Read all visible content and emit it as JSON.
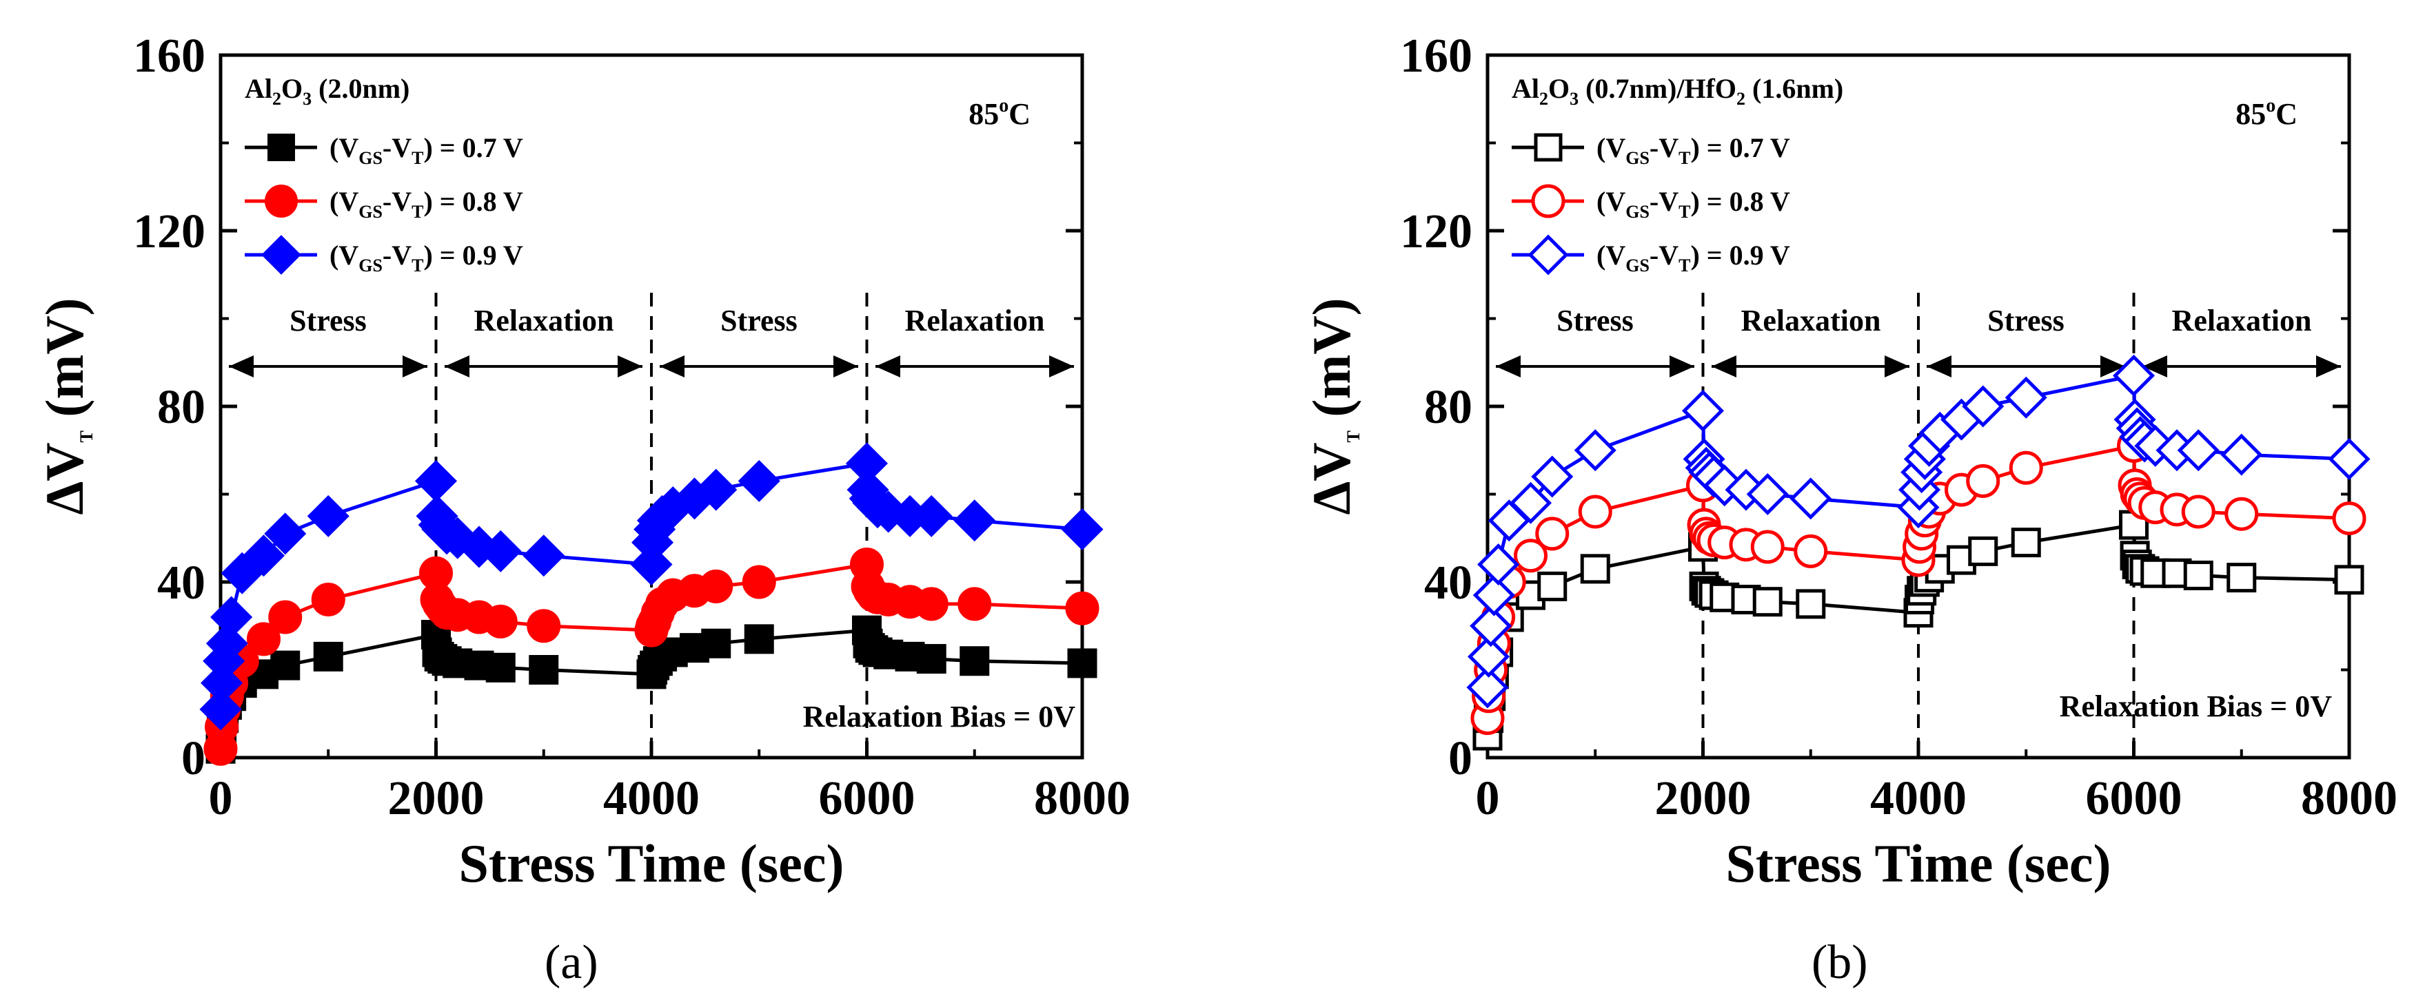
{
  "panels": [
    {
      "caption": "(a)",
      "device": {
        "main": "Al",
        "s1": "2",
        "mid": "O",
        "s2": "3",
        "rest": " (2.0nm)"
      },
      "temperature": {
        "value": "85",
        "sup": "o",
        "unit": "C"
      },
      "bias_note": "Relaxation Bias = 0V",
      "phases": [
        "Stress",
        "Relaxation",
        "Stress",
        "Relaxation"
      ],
      "legend": [
        {
          "pre": "(V",
          "s1": "GS",
          "mid": "-V",
          "s2": "T",
          "post": ") = 0.7 V"
        },
        {
          "pre": "(V",
          "s1": "GS",
          "mid": "-V",
          "s2": "T",
          "post": ") = 0.8 V"
        },
        {
          "pre": "(V",
          "s1": "GS",
          "mid": "-V",
          "s2": "T",
          "post": ") = 0.9 V"
        }
      ]
    },
    {
      "caption": "(b)",
      "device": {
        "main": "Al",
        "s1": "2",
        "mid": "O",
        "s2": "3",
        "rest": " (0.7nm)/HfO",
        "s3": "2",
        "rest2": " (1.6nm)"
      },
      "temperature": {
        "value": "85",
        "sup": "o",
        "unit": "C"
      },
      "bias_note": "Relaxation Bias = 0V",
      "phases": [
        "Stress",
        "Relaxation",
        "Stress",
        "Relaxation"
      ],
      "legend": [
        {
          "pre": "(V",
          "s1": "GS",
          "mid": "-V",
          "s2": "T",
          "post": ") = 0.7 V"
        },
        {
          "pre": "(V",
          "s1": "GS",
          "mid": "-V",
          "s2": "T",
          "post": ") = 0.8 V"
        },
        {
          "pre": "(V",
          "s1": "GS",
          "mid": "-V",
          "s2": "T",
          "post": ") = 0.9 V"
        }
      ]
    }
  ],
  "axes": {
    "ylabel": {
      "delta": "ΔV",
      "sub": "T",
      "unit": " (mV)"
    },
    "xlabel": "Stress Time (sec)"
  },
  "colors": {
    "s07": "#000000",
    "s08": "#ff0000",
    "s09": "#0000ff"
  },
  "chart_data": [
    {
      "type": "line",
      "title": "Al2O3 (2.0nm)",
      "xlabel": "Stress Time (sec)",
      "ylabel": "ΔVT (mV)",
      "xlim": [
        0,
        8000
      ],
      "ylim": [
        0,
        160
      ],
      "xticks": [
        0,
        2000,
        4000,
        6000,
        8000
      ],
      "yticks": [
        0,
        40,
        80,
        120,
        160
      ],
      "phase_boundaries": [
        2000,
        4000,
        6000
      ],
      "marker_fill": "filled",
      "series": [
        {
          "name": "(VGS-VT) = 0.7 V",
          "color": "#000000",
          "marker": "square",
          "x": [
            0,
            10,
            30,
            60,
            100,
            200,
            400,
            600,
            1000,
            2000,
            2010,
            2030,
            2060,
            2100,
            2200,
            2400,
            2600,
            3000,
            4000,
            4010,
            4030,
            4060,
            4100,
            4200,
            4400,
            4600,
            5000,
            6000,
            6010,
            6030,
            6060,
            6100,
            6200,
            6400,
            6600,
            7000,
            8000
          ],
          "y": [
            2,
            6,
            9,
            12,
            14,
            17,
            19,
            21,
            23,
            28,
            24,
            23,
            22.5,
            22,
            21.5,
            21,
            20.5,
            20,
            19,
            20,
            21,
            22,
            23,
            24,
            25,
            26,
            27,
            29,
            26,
            25,
            24.5,
            24,
            23.5,
            23,
            22.5,
            22,
            21.5
          ]
        },
        {
          "name": "(VGS-VT) = 0.8 V",
          "color": "#ff0000",
          "marker": "circle",
          "x": [
            0,
            10,
            30,
            60,
            100,
            200,
            400,
            600,
            1000,
            2000,
            2010,
            2030,
            2060,
            2100,
            2200,
            2400,
            2600,
            3000,
            4000,
            4010,
            4030,
            4060,
            4100,
            4200,
            4400,
            4600,
            5000,
            6000,
            6010,
            6030,
            6060,
            6100,
            6200,
            6400,
            6600,
            7000,
            8000
          ],
          "y": [
            2,
            7,
            11,
            14,
            17,
            22,
            27,
            32,
            36,
            42,
            36,
            35,
            34,
            33,
            32.5,
            32,
            31,
            30,
            29,
            30,
            31,
            33,
            35,
            37,
            38,
            39,
            40,
            44,
            39,
            38,
            37,
            36.5,
            36,
            35.5,
            35,
            35,
            34
          ]
        },
        {
          "name": "(VGS-VT) = 0.9 V",
          "color": "#0000ff",
          "marker": "diamond",
          "x": [
            0,
            10,
            30,
            60,
            100,
            200,
            400,
            600,
            1000,
            2000,
            2010,
            2030,
            2060,
            2100,
            2200,
            2400,
            2600,
            3000,
            4000,
            4010,
            4030,
            4060,
            4100,
            4200,
            4400,
            4600,
            5000,
            6000,
            6010,
            6030,
            6060,
            6100,
            6200,
            6400,
            6600,
            7000,
            8000
          ],
          "y": [
            11,
            17,
            22,
            26,
            32,
            42,
            46,
            51,
            55,
            63,
            55,
            53,
            52,
            51,
            50,
            48,
            47,
            46,
            44,
            49,
            52,
            54,
            55,
            57,
            59,
            61,
            63,
            67,
            61,
            59,
            58,
            57,
            56,
            55,
            55,
            54,
            52
          ]
        }
      ]
    },
    {
      "type": "line",
      "title": "Al2O3 (0.7nm)/HfO2 (1.6nm)",
      "xlabel": "Stress Time (sec)",
      "ylabel": "ΔVT (mV)",
      "xlim": [
        0,
        8000
      ],
      "ylim": [
        0,
        160
      ],
      "xticks": [
        0,
        2000,
        4000,
        6000,
        8000
      ],
      "yticks": [
        0,
        40,
        80,
        120,
        160
      ],
      "phase_boundaries": [
        2000,
        4000,
        6000
      ],
      "marker_fill": "open",
      "series": [
        {
          "name": "(VGS-VT) = 0.7 V",
          "color": "#000000",
          "marker": "square",
          "x": [
            0,
            10,
            30,
            60,
            100,
            200,
            400,
            600,
            1000,
            2000,
            2010,
            2030,
            2060,
            2100,
            2200,
            2400,
            2600,
            3000,
            4000,
            4010,
            4030,
            4060,
            4100,
            4200,
            4400,
            4600,
            5000,
            6000,
            6010,
            6030,
            6060,
            6100,
            6200,
            6400,
            6600,
            7000,
            8000
          ],
          "y": [
            5,
            9,
            14,
            19,
            24,
            32,
            37,
            39,
            43,
            48,
            39,
            38,
            37.5,
            37,
            36.5,
            36,
            35.5,
            35,
            33,
            36,
            38,
            40,
            41,
            43,
            45,
            47,
            49,
            53,
            46,
            44,
            43,
            42.5,
            42,
            42,
            41.5,
            41,
            40.5
          ]
        },
        {
          "name": "(VGS-VT) = 0.8 V",
          "color": "#ff0000",
          "marker": "circle",
          "x": [
            0,
            10,
            30,
            60,
            100,
            200,
            400,
            600,
            1000,
            2000,
            2010,
            2030,
            2060,
            2100,
            2200,
            2400,
            2600,
            3000,
            4000,
            4010,
            4030,
            4060,
            4100,
            4200,
            4400,
            4600,
            5000,
            6000,
            6010,
            6030,
            6060,
            6100,
            6200,
            6400,
            6600,
            7000,
            8000
          ],
          "y": [
            9,
            14,
            20,
            26,
            32,
            40,
            46,
            51,
            56,
            62,
            53,
            51,
            50,
            49.5,
            49,
            48.5,
            48,
            47,
            45,
            48,
            51,
            54,
            56,
            59,
            61,
            63,
            66,
            71,
            62,
            60,
            59,
            58,
            57,
            56.5,
            56,
            55.5,
            54.5
          ]
        },
        {
          "name": "(VGS-VT) = 0.9 V",
          "color": "#0000ff",
          "marker": "diamond",
          "x": [
            0,
            10,
            30,
            60,
            100,
            200,
            400,
            600,
            1000,
            2000,
            2010,
            2030,
            2060,
            2100,
            2200,
            2400,
            2600,
            3000,
            4000,
            4010,
            4030,
            4060,
            4100,
            4200,
            4400,
            4600,
            5000,
            6000,
            6010,
            6030,
            6060,
            6100,
            6200,
            6400,
            6600,
            7000,
            8000
          ],
          "y": [
            16,
            23,
            30,
            37,
            44,
            54,
            58,
            64,
            70,
            79,
            68,
            66,
            65,
            64,
            62,
            61,
            60,
            59,
            57,
            61,
            65,
            68,
            71,
            74,
            77,
            80,
            82,
            87,
            77,
            75,
            73,
            72,
            71,
            70,
            70,
            69,
            68
          ]
        }
      ]
    }
  ]
}
